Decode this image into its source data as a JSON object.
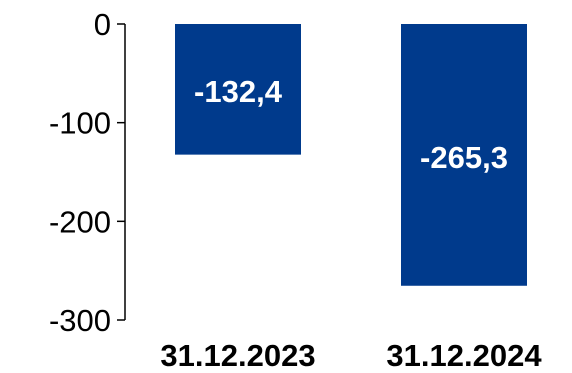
{
  "chart_data": {
    "type": "bar",
    "categories": [
      "31.12.2023",
      "31.12.2024"
    ],
    "values": [
      -132.4,
      -265.3
    ],
    "data_labels": [
      "-132,4",
      "-265,3"
    ],
    "yticks": [
      0,
      -100,
      -200,
      -300
    ],
    "ytick_labels": [
      "0",
      "-100",
      "-200",
      "-300"
    ],
    "ylim": [
      -300,
      0
    ],
    "grid": false,
    "bar_color": "#003a8c"
  }
}
